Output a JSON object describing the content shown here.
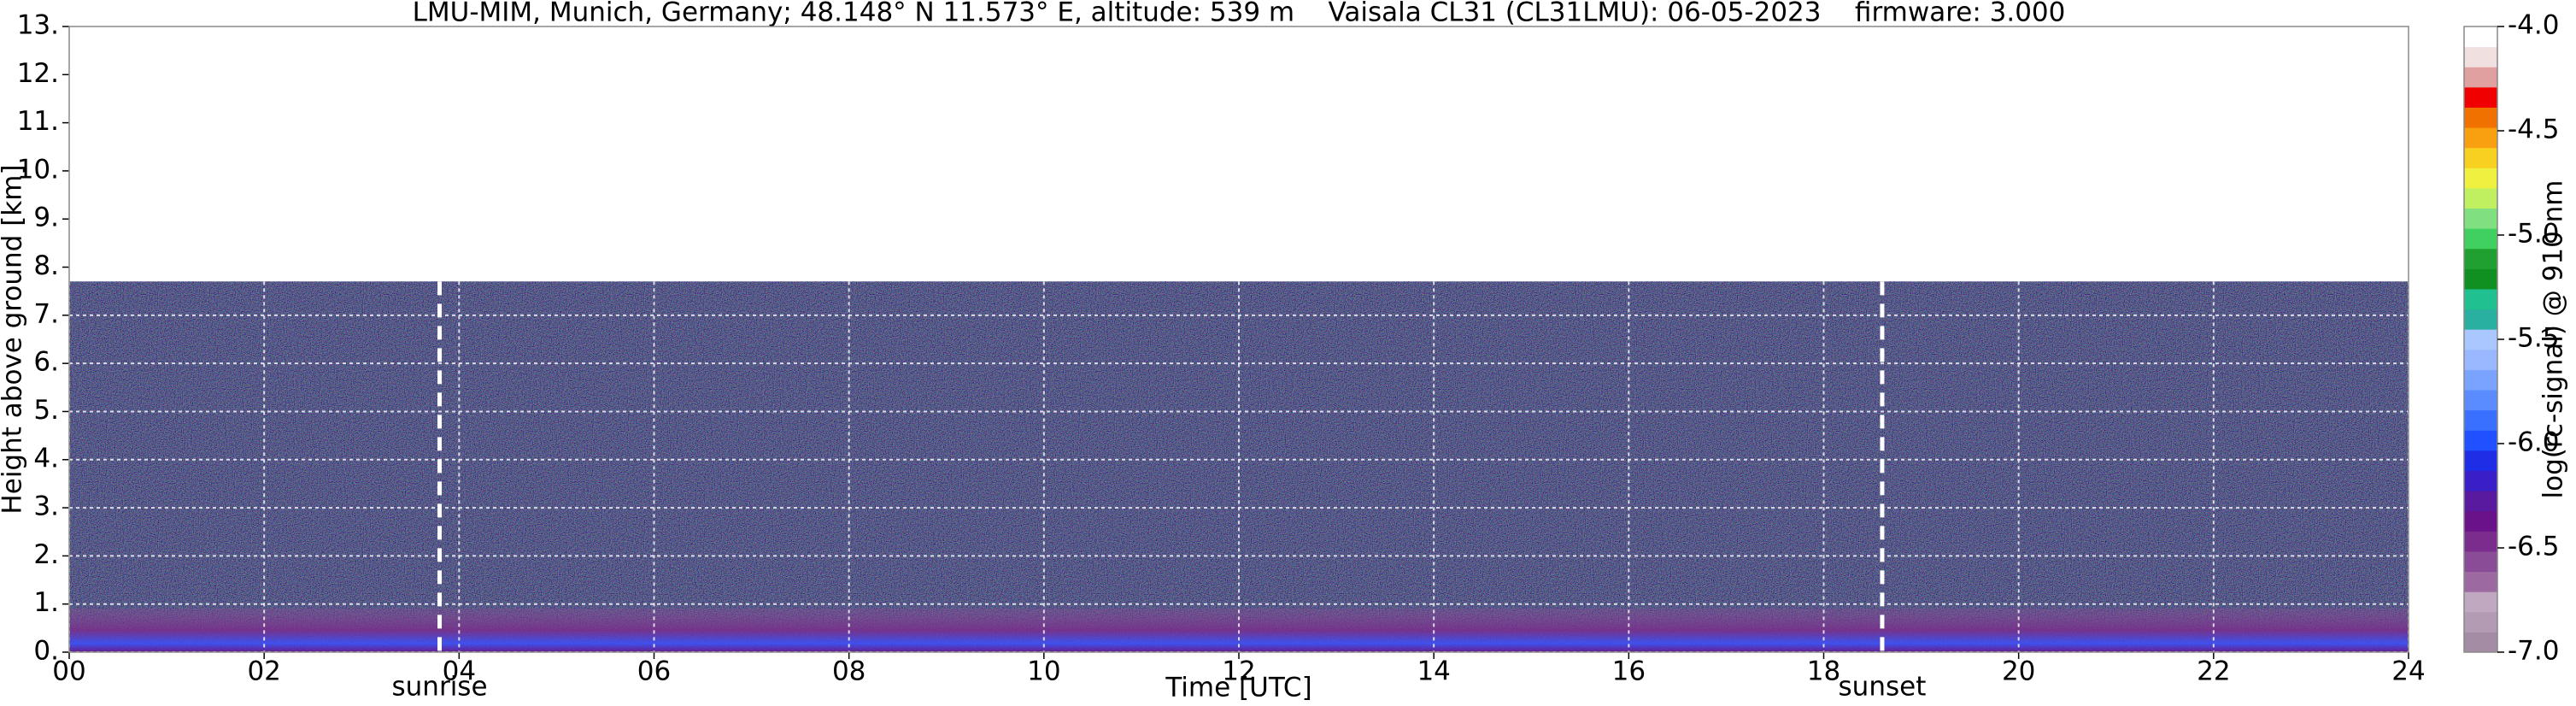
{
  "chart_data": {
    "type": "heatmap",
    "title": "LMU-MIM, Munich, Germany; 48.148° N 11.573° E, altitude: 539 m    Vaisala CL31 (CL31LMU): 06-05-2023    firmware: 3.000",
    "x_label": "Time [UTC]",
    "y_label": "Height above ground [km]",
    "xlim": [
      0,
      24
    ],
    "xticks": [
      {
        "value": 0,
        "label": "00"
      },
      {
        "value": 2,
        "label": "02"
      },
      {
        "value": 4,
        "label": "04"
      },
      {
        "value": 6,
        "label": "06"
      },
      {
        "value": 8,
        "label": "08"
      },
      {
        "value": 10,
        "label": "10"
      },
      {
        "value": 12,
        "label": "12"
      },
      {
        "value": 14,
        "label": "14"
      },
      {
        "value": 16,
        "label": "16"
      },
      {
        "value": 18,
        "label": "18"
      },
      {
        "value": 20,
        "label": "20"
      },
      {
        "value": 22,
        "label": "22"
      },
      {
        "value": 24,
        "label": "24"
      }
    ],
    "ylim": [
      0,
      13
    ],
    "yticks": [
      {
        "value": 0,
        "label": "0."
      },
      {
        "value": 1,
        "label": "1."
      },
      {
        "value": 2,
        "label": "2."
      },
      {
        "value": 3,
        "label": "3."
      },
      {
        "value": 4,
        "label": "4."
      },
      {
        "value": 5,
        "label": "5."
      },
      {
        "value": 6,
        "label": "6."
      },
      {
        "value": 7,
        "label": "7."
      },
      {
        "value": 8,
        "label": "8."
      },
      {
        "value": 9,
        "label": "9."
      },
      {
        "value": 10,
        "label": "10."
      },
      {
        "value": 11,
        "label": "11."
      },
      {
        "value": 12,
        "label": "12."
      },
      {
        "value": 13,
        "label": "13."
      }
    ],
    "grid": true,
    "signal_top": 7.7,
    "markers": [
      {
        "label": "sunrise",
        "x": 3.8
      },
      {
        "label": "sunset",
        "x": 18.6
      }
    ],
    "colorbar": {
      "label": "log(rc-signal) @ 910 nm",
      "lim": [
        -7,
        -4
      ],
      "ticks": [
        {
          "value": -4,
          "label": "-4.0"
        },
        -4.5,
        {
          "value": -5,
          "label": "-5.0"
        },
        -5.5,
        {
          "value": -6,
          "label": "-6.0"
        },
        -6.5,
        {
          "value": -7,
          "label": "-7.0"
        }
      ],
      "colors": [
        "#a58ca5",
        "#b39bb3",
        "#c0a8c0",
        "#9c6aa0",
        "#8a4c96",
        "#7a2d8c",
        "#6a128a",
        "#5a1aa0",
        "#3a1ec8",
        "#1e2ee6",
        "#2050ff",
        "#3a70ff",
        "#5a8cff",
        "#7aa2ff",
        "#9ab8ff",
        "#aac8ff",
        "#2ab0a0",
        "#20c090",
        "#109020",
        "#20a030",
        "#40d060",
        "#80e080",
        "#c0f060",
        "#f0f040",
        "#f8d020",
        "#f8a010",
        "#f07000",
        "#f00000",
        "#e0a0a0",
        "#f0e0e0",
        "#ffffff"
      ]
    }
  }
}
